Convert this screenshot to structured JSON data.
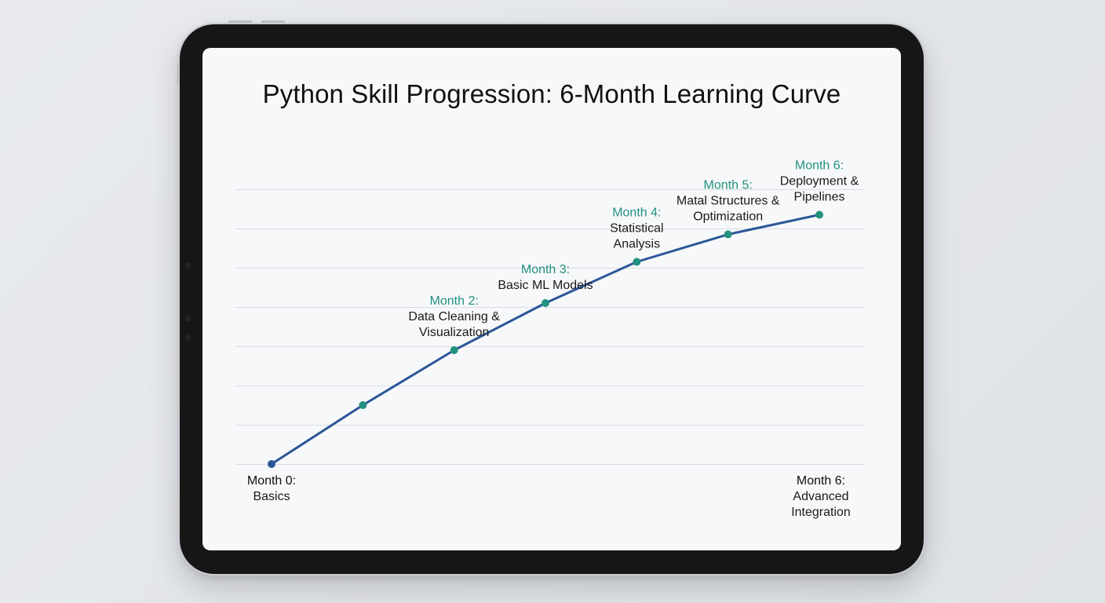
{
  "chart_data": {
    "type": "line",
    "title": "Python Skill Progression: 6-Month Learning Curve",
    "x": [
      0,
      1,
      2,
      3,
      4,
      5,
      6
    ],
    "values": [
      0,
      1.5,
      2.9,
      4.1,
      5.15,
      5.85,
      6.35
    ],
    "ylim": [
      0,
      7
    ],
    "grid": true,
    "point_labels": [
      null,
      null,
      {
        "month": "Month 2:",
        "desc": [
          "Data Cleaning &",
          "Visualization"
        ]
      },
      {
        "month": "Month 3:",
        "desc": [
          "Basic ML Models"
        ]
      },
      {
        "month": "Month 4:",
        "desc": [
          "Statistical",
          "Analysis"
        ]
      },
      {
        "month": "Month 5:",
        "desc": [
          "Matal Structures &",
          "Optimization"
        ]
      },
      {
        "month": "Month 6:",
        "desc": [
          "Deployment &",
          "Pipelines"
        ]
      }
    ],
    "axis_labels": {
      "start": {
        "month": "Month 0:",
        "desc": [
          "Basics"
        ]
      },
      "end": {
        "month": "Month 6:",
        "desc": [
          "Advanced",
          "Integration"
        ]
      }
    },
    "colors": {
      "line": "#2b5797",
      "point": "#23917f",
      "first_point": "#2b5797",
      "grid": "#d9dde3"
    }
  }
}
